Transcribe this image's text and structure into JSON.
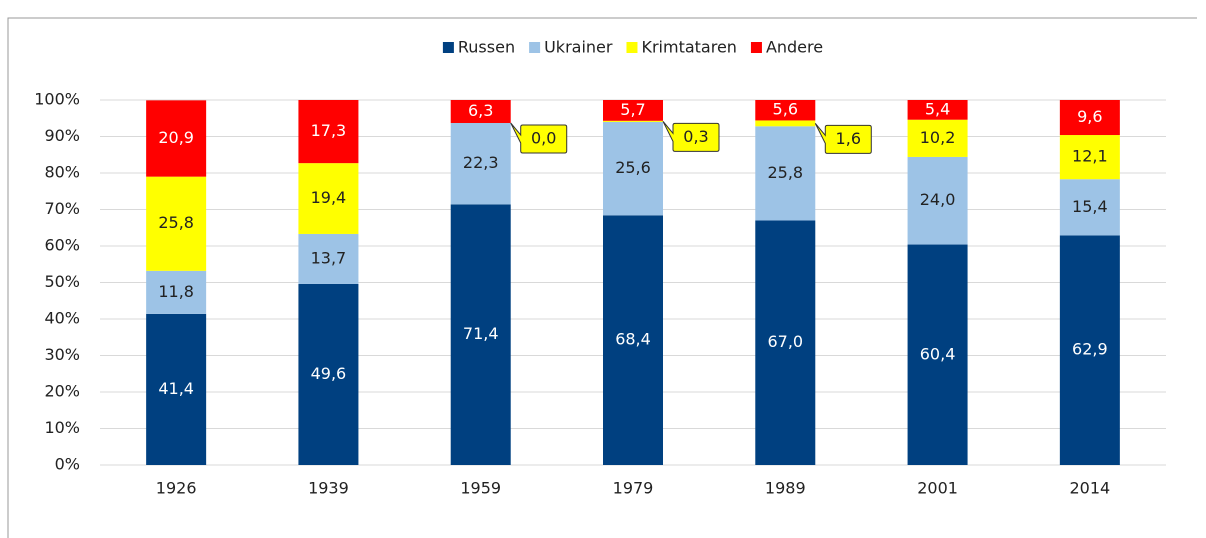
{
  "chart_data": {
    "type": "stacked_bar",
    "categories": [
      "1926",
      "1939",
      "1959",
      "1979",
      "1989",
      "2001",
      "2014"
    ],
    "series": [
      {
        "name": "Russen",
        "color": "#004080",
        "values": [
          41.4,
          49.6,
          71.4,
          68.4,
          67.0,
          60.4,
          62.9
        ],
        "value_labels": [
          "41,4",
          "49,6",
          "71,4",
          "68,4",
          "67,0",
          "60,4",
          "62,9"
        ]
      },
      {
        "name": "Ukrainer",
        "color": "#9dc3e6",
        "values": [
          11.8,
          13.7,
          22.3,
          25.6,
          25.8,
          24.0,
          15.4
        ],
        "value_labels": [
          "11,8",
          "13,7",
          "22,3",
          "25,6",
          "25,8",
          "24,0",
          "15,4"
        ]
      },
      {
        "name": "Krimtataren",
        "color": "#ffff00",
        "values": [
          25.8,
          19.4,
          0.0,
          0.3,
          1.6,
          10.2,
          12.1
        ],
        "value_labels": [
          "25,8",
          "19,4",
          "0,0",
          "0,3",
          "1,6",
          "10,2",
          "12,1"
        ]
      },
      {
        "name": "Andere",
        "color": "#ff0000",
        "values": [
          20.9,
          17.3,
          6.3,
          5.7,
          5.6,
          5.4,
          9.6
        ],
        "value_labels": [
          "20,9",
          "17,3",
          "6,3",
          "5,7",
          "5,6",
          "5,4",
          "9,6"
        ]
      }
    ],
    "ylim": [
      0,
      100
    ],
    "yticks": [
      {
        "value": 0,
        "label": "0%"
      },
      {
        "value": 10,
        "label": "10%"
      },
      {
        "value": 20,
        "label": "20%"
      },
      {
        "value": 30,
        "label": "30%"
      },
      {
        "value": 40,
        "label": "40%"
      },
      {
        "value": 50,
        "label": "50%"
      },
      {
        "value": 60,
        "label": "60%"
      },
      {
        "value": 70,
        "label": "70%"
      },
      {
        "value": 80,
        "label": "80%"
      },
      {
        "value": 90,
        "label": "90%"
      },
      {
        "value": 100,
        "label": "100%"
      }
    ],
    "grid": true,
    "legend": "top"
  }
}
